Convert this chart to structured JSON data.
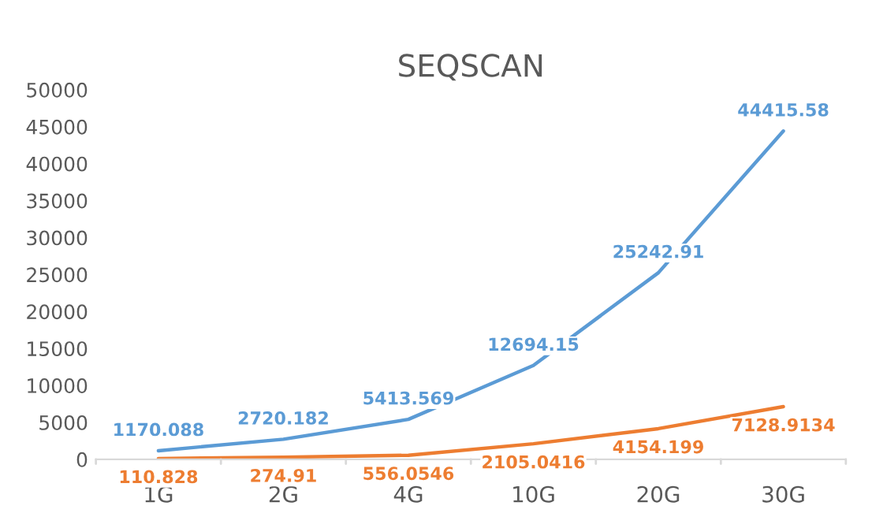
{
  "chart_data": {
    "type": "line",
    "title": "SEQSCAN",
    "categories": [
      "1G",
      "2G",
      "4G",
      "10G",
      "20G",
      "30G"
    ],
    "series": [
      {
        "color": "#5b9bd5",
        "values": [
          1170.088,
          2720.182,
          5413.569,
          12694.15,
          25242.91,
          44415.58
        ]
      },
      {
        "color": "#ed7d31",
        "values": [
          110.828,
          274.91,
          556.0546,
          2105.0416,
          4154.199,
          7128.9134
        ]
      }
    ],
    "ylim": [
      0,
      50000
    ],
    "yticks": [
      0,
      5000,
      10000,
      15000,
      20000,
      25000,
      30000,
      35000,
      40000,
      45000,
      50000
    ],
    "grid": false,
    "legend": false,
    "data_labels": true,
    "marker": "none",
    "line_style": "solid"
  }
}
